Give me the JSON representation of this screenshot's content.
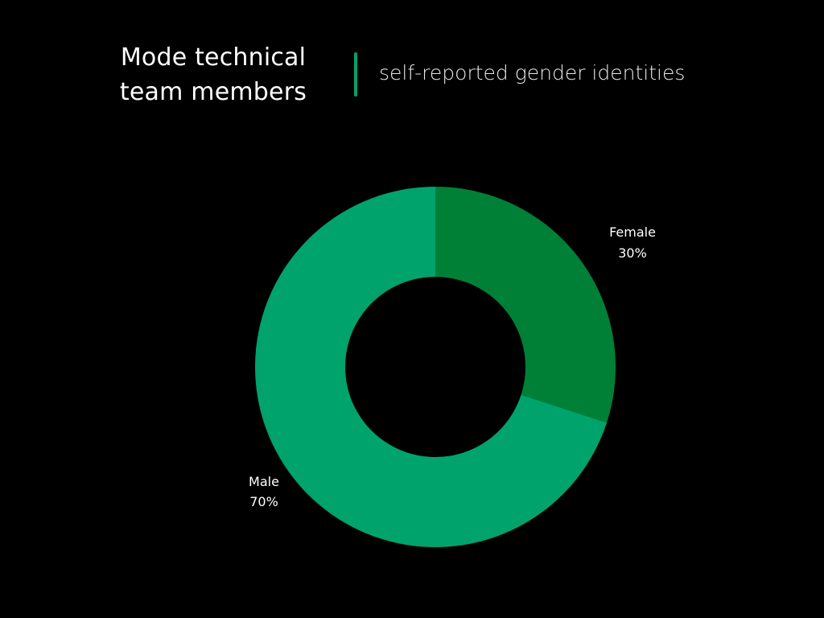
{
  "chart_data": {
    "type": "pie",
    "title": "Mode technical team members",
    "title_lines": [
      "Mode technical",
      "team members"
    ],
    "subtitle": "self-reported gender identities",
    "donut": true,
    "slices": [
      {
        "label": "Female",
        "value": 30,
        "value_label": "30%",
        "color": "#008037"
      },
      {
        "label": "Male",
        "value": 70,
        "value_label": "70%",
        "color": "#00A36C"
      }
    ]
  },
  "colors": {
    "background": "#000000",
    "accent": "#00A36C",
    "text": "#FFFFFF"
  }
}
